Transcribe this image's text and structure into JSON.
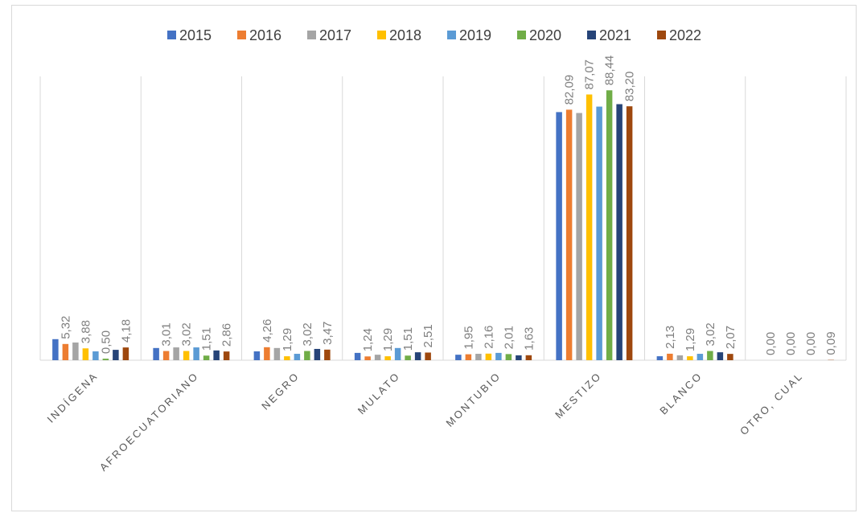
{
  "chart_data": {
    "type": "bar",
    "categories": [
      "INDÍGENA",
      "AFROECUATORIANO",
      "NEGRO",
      "MULATO",
      "MONTUBIO",
      "MESTIZO",
      "BLANCO",
      "OTRO, CUAL"
    ],
    "ylim": [
      0,
      93
    ],
    "grid": "vertical",
    "legend": "top",
    "series": [
      {
        "name": "2015",
        "color": "#4472c4",
        "values": [
          6.9,
          4.0,
          2.9,
          2.4,
          1.8,
          81.3,
          1.3,
          0
        ]
      },
      {
        "name": "2016",
        "color": "#ed7d31",
        "values": [
          5.32,
          3.01,
          4.26,
          1.24,
          1.95,
          82.09,
          2.13,
          0
        ],
        "value_labels": [
          "5,32",
          "3,01",
          "4,26",
          "1,24",
          "1,95",
          "82,09",
          "2,13",
          "0,00"
        ]
      },
      {
        "name": "2017",
        "color": "#a5a5a5",
        "values": [
          5.8,
          4.2,
          4.0,
          1.8,
          2.1,
          81.0,
          1.6,
          0
        ]
      },
      {
        "name": "2018",
        "color": "#ffc000",
        "values": [
          3.88,
          3.02,
          1.29,
          1.29,
          2.16,
          87.07,
          1.29,
          0
        ],
        "value_labels": [
          "3,88",
          "3,02",
          "1,29",
          "1,29",
          "2,16",
          "87,07",
          "1,29",
          "0,00"
        ]
      },
      {
        "name": "2019",
        "color": "#5b9bd5",
        "values": [
          2.9,
          4.2,
          2.1,
          4.0,
          2.4,
          83.1,
          2.1,
          0
        ]
      },
      {
        "name": "2020",
        "color": "#70ad47",
        "values": [
          0.5,
          1.51,
          3.02,
          1.51,
          2.01,
          88.44,
          3.02,
          0
        ],
        "value_labels": [
          "0,50",
          "1,51",
          "3,02",
          "1,51",
          "2,01",
          "88,44",
          "3,02",
          "0,00"
        ]
      },
      {
        "name": "2021",
        "color": "#264478",
        "values": [
          3.4,
          3.2,
          3.7,
          2.6,
          1.6,
          83.9,
          2.6,
          0
        ]
      },
      {
        "name": "2022",
        "color": "#9e480e",
        "values": [
          4.18,
          2.86,
          3.47,
          2.51,
          1.63,
          83.2,
          2.07,
          0.09
        ],
        "value_labels": [
          "4,18",
          "2,86",
          "3,47",
          "2,51",
          "1,63",
          "83,20",
          "2,07",
          "0,09"
        ]
      }
    ]
  }
}
